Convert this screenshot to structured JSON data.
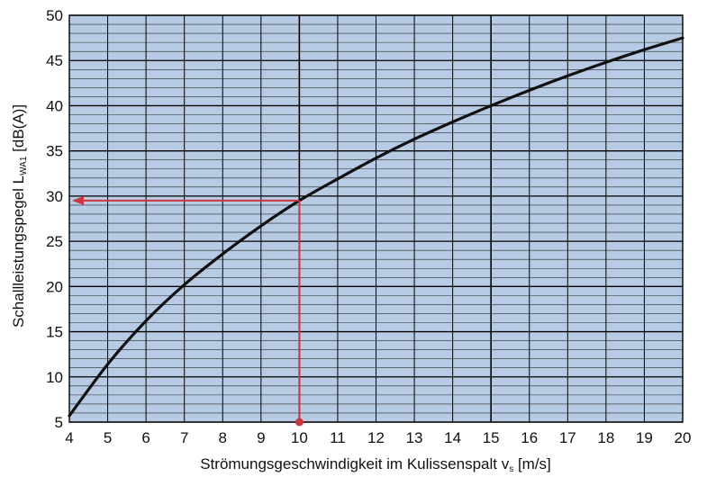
{
  "chart_data": {
    "type": "line",
    "xlabel": "Strömungsgeschwindigkeit im Kulissenspalt v",
    "xlabel_sub": "s",
    "xlabel_unit": " [m/s]",
    "ylabel": "Schallleistungspegel L",
    "ylabel_sub": "WA1",
    "ylabel_unit": " [dB(A)]",
    "xlim": [
      4,
      20
    ],
    "ylim": [
      5,
      50
    ],
    "x_ticks": [
      4,
      5,
      6,
      7,
      8,
      9,
      10,
      11,
      12,
      13,
      14,
      15,
      16,
      17,
      18,
      19,
      20
    ],
    "y_ticks": [
      5,
      10,
      15,
      20,
      25,
      30,
      35,
      40,
      45,
      50
    ],
    "grid": true,
    "series": [
      {
        "x": [
          4,
          5,
          6,
          7,
          8,
          9,
          10,
          11,
          12,
          13,
          14,
          15,
          16,
          17,
          18,
          19,
          20
        ],
        "y": [
          5.7,
          11.4,
          16.2,
          20.2,
          23.6,
          26.7,
          29.5,
          31.9,
          34.2,
          36.3,
          38.2,
          40.0,
          41.7,
          43.3,
          44.8,
          46.2,
          47.5
        ]
      }
    ],
    "annotation": {
      "x": 10,
      "y": 29.5,
      "color": "#d0343f"
    },
    "colors": {
      "plot_background": "#b7cbe4",
      "minor_grid": "#2a2a2a",
      "major_grid": "#000000",
      "curve": "#111111"
    }
  }
}
